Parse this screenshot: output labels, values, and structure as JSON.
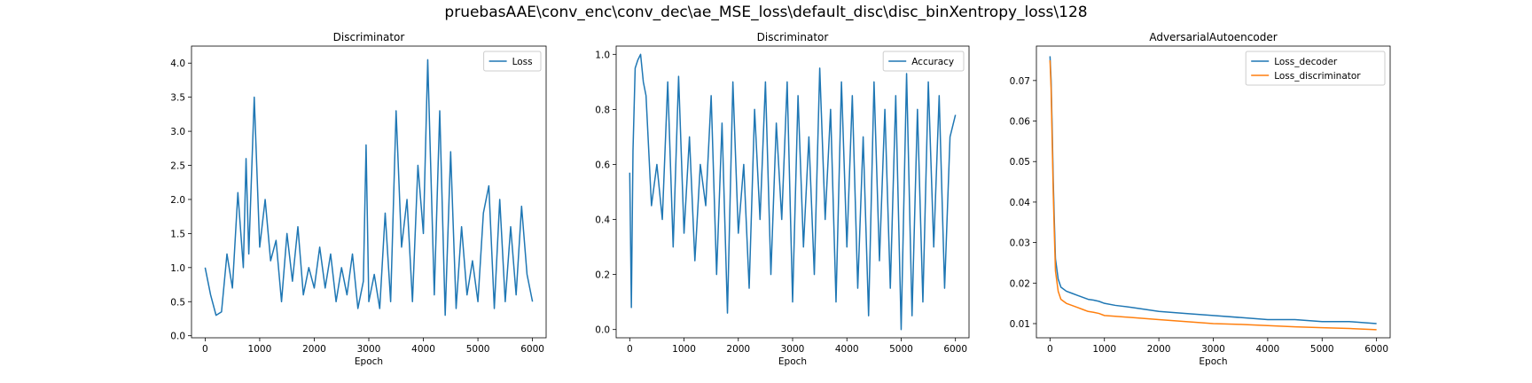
{
  "figure": {
    "title": "pruebasAAE\\conv_enc\\conv_dec\\ae_MSE_loss\\default_disc\\disc_binXentropy_loss\\128"
  },
  "colors": {
    "blue": "#1f77b4",
    "orange": "#ff7f0e"
  },
  "chart_data": [
    {
      "type": "line",
      "title": "Discriminator",
      "xlabel": "Epoch",
      "ylabel": "",
      "xlim": [
        -250,
        6250
      ],
      "ylim": [
        -0.03,
        4.25
      ],
      "xticks": [
        0,
        1000,
        2000,
        3000,
        4000,
        5000,
        6000
      ],
      "yticks": [
        0.0,
        0.5,
        1.0,
        1.5,
        2.0,
        2.5,
        3.0,
        3.5,
        4.0
      ],
      "ytick_labels": [
        "0.0",
        "0.5",
        "1.0",
        "1.5",
        "2.0",
        "2.5",
        "3.0",
        "3.5",
        "4.0"
      ],
      "legend_position": "upper right",
      "series": [
        {
          "name": "Loss",
          "color": "#1f77b4",
          "x": [
            0,
            100,
            200,
            300,
            400,
            500,
            600,
            700,
            750,
            800,
            900,
            1000,
            1100,
            1200,
            1300,
            1400,
            1500,
            1600,
            1700,
            1800,
            1900,
            2000,
            2100,
            2200,
            2300,
            2400,
            2500,
            2600,
            2700,
            2800,
            2900,
            2950,
            3000,
            3100,
            3200,
            3300,
            3400,
            3500,
            3600,
            3700,
            3800,
            3900,
            4000,
            4080,
            4200,
            4300,
            4400,
            4500,
            4600,
            4700,
            4800,
            4900,
            5000,
            5100,
            5200,
            5300,
            5400,
            5500,
            5600,
            5700,
            5800,
            5900,
            6000
          ],
          "y": [
            1.0,
            0.6,
            0.3,
            0.35,
            1.2,
            0.7,
            2.1,
            1.0,
            2.6,
            1.2,
            3.5,
            1.3,
            2.0,
            1.1,
            1.4,
            0.5,
            1.5,
            0.8,
            1.6,
            0.6,
            1.0,
            0.7,
            1.3,
            0.7,
            1.2,
            0.5,
            1.0,
            0.6,
            1.2,
            0.4,
            0.8,
            2.8,
            0.5,
            0.9,
            0.4,
            1.8,
            0.5,
            3.3,
            1.3,
            2.0,
            0.5,
            2.5,
            1.5,
            4.05,
            0.6,
            3.3,
            0.3,
            2.7,
            0.4,
            1.6,
            0.6,
            1.1,
            0.5,
            1.8,
            2.2,
            0.4,
            2.0,
            0.5,
            1.6,
            0.6,
            1.9,
            0.9,
            0.5
          ]
        }
      ]
    },
    {
      "type": "line",
      "title": "Discriminator",
      "xlabel": "Epoch",
      "ylabel": "",
      "xlim": [
        -250,
        6250
      ],
      "ylim": [
        -0.03,
        1.03
      ],
      "xticks": [
        0,
        1000,
        2000,
        3000,
        4000,
        5000,
        6000
      ],
      "yticks": [
        0.0,
        0.2,
        0.4,
        0.6,
        0.8,
        1.0
      ],
      "ytick_labels": [
        "0.0",
        "0.2",
        "0.4",
        "0.6",
        "0.8",
        "1.0"
      ],
      "legend_position": "upper right",
      "series": [
        {
          "name": "Accuracy",
          "color": "#1f77b4",
          "x": [
            0,
            30,
            60,
            100,
            150,
            200,
            250,
            300,
            400,
            500,
            600,
            700,
            800,
            900,
            1000,
            1100,
            1200,
            1300,
            1400,
            1500,
            1600,
            1700,
            1800,
            1900,
            2000,
            2100,
            2200,
            2300,
            2400,
            2500,
            2600,
            2700,
            2800,
            2900,
            3000,
            3100,
            3200,
            3300,
            3400,
            3500,
            3600,
            3700,
            3800,
            3900,
            4000,
            4100,
            4200,
            4300,
            4400,
            4500,
            4600,
            4700,
            4800,
            4900,
            5000,
            5100,
            5200,
            5300,
            5400,
            5500,
            5600,
            5700,
            5800,
            5900,
            6000
          ],
          "y": [
            0.57,
            0.08,
            0.65,
            0.95,
            0.98,
            1.0,
            0.9,
            0.85,
            0.45,
            0.6,
            0.4,
            0.9,
            0.3,
            0.92,
            0.35,
            0.7,
            0.25,
            0.6,
            0.45,
            0.85,
            0.2,
            0.75,
            0.06,
            0.9,
            0.35,
            0.6,
            0.15,
            0.8,
            0.4,
            0.9,
            0.2,
            0.75,
            0.4,
            0.9,
            0.1,
            0.85,
            0.3,
            0.7,
            0.2,
            0.95,
            0.4,
            0.8,
            0.1,
            0.9,
            0.3,
            0.85,
            0.15,
            0.7,
            0.05,
            0.9,
            0.25,
            0.8,
            0.15,
            0.85,
            0.0,
            0.93,
            0.05,
            0.8,
            0.1,
            0.9,
            0.3,
            0.85,
            0.15,
            0.7,
            0.78
          ]
        }
      ]
    },
    {
      "type": "line",
      "title": "AdversarialAutoencoder",
      "xlabel": "Epoch",
      "ylabel": "",
      "xlim": [
        -250,
        6250
      ],
      "ylim": [
        0.0065,
        0.0785
      ],
      "xticks": [
        0,
        1000,
        2000,
        3000,
        4000,
        5000,
        6000
      ],
      "yticks": [
        0.01,
        0.02,
        0.03,
        0.04,
        0.05,
        0.06,
        0.07
      ],
      "ytick_labels": [
        "0.01",
        "0.02",
        "0.03",
        "0.04",
        "0.05",
        "0.06",
        "0.07"
      ],
      "legend_position": "upper right",
      "series": [
        {
          "name": "Loss_decoder",
          "color": "#1f77b4",
          "x": [
            0,
            20,
            40,
            60,
            80,
            100,
            150,
            200,
            300,
            400,
            500,
            600,
            700,
            800,
            900,
            1000,
            1200,
            1500,
            2000,
            2500,
            3000,
            3500,
            4000,
            4500,
            5000,
            5500,
            6000
          ],
          "y": [
            0.076,
            0.07,
            0.058,
            0.045,
            0.035,
            0.026,
            0.021,
            0.019,
            0.018,
            0.0175,
            0.017,
            0.0165,
            0.016,
            0.0158,
            0.0155,
            0.015,
            0.0145,
            0.014,
            0.013,
            0.0125,
            0.012,
            0.0115,
            0.011,
            0.011,
            0.0105,
            0.0105,
            0.01
          ]
        },
        {
          "name": "Loss_discriminator",
          "color": "#ff7f0e",
          "x": [
            0,
            20,
            40,
            60,
            80,
            100,
            150,
            200,
            300,
            400,
            500,
            600,
            700,
            800,
            900,
            1000,
            1200,
            1500,
            2000,
            2500,
            3000,
            3500,
            4000,
            4500,
            5000,
            5500,
            6000
          ],
          "y": [
            0.075,
            0.068,
            0.055,
            0.042,
            0.032,
            0.023,
            0.018,
            0.016,
            0.015,
            0.0145,
            0.014,
            0.0135,
            0.013,
            0.0128,
            0.0125,
            0.012,
            0.0118,
            0.0115,
            0.011,
            0.0105,
            0.01,
            0.0098,
            0.0095,
            0.0092,
            0.009,
            0.0088,
            0.0085
          ]
        }
      ]
    }
  ]
}
